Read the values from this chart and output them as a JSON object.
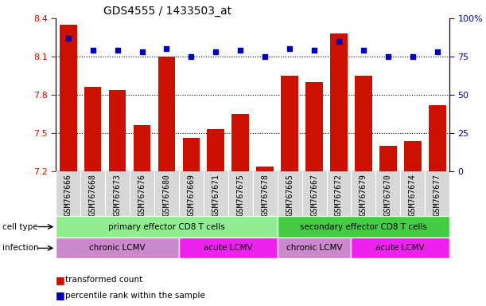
{
  "title": "GDS4555 / 1433503_at",
  "samples": [
    "GSM767666",
    "GSM767668",
    "GSM767673",
    "GSM767676",
    "GSM767680",
    "GSM767669",
    "GSM767671",
    "GSM767675",
    "GSM767678",
    "GSM767665",
    "GSM767667",
    "GSM767672",
    "GSM767679",
    "GSM767670",
    "GSM767674",
    "GSM767677"
  ],
  "bar_values": [
    8.35,
    7.86,
    7.84,
    7.56,
    8.1,
    7.46,
    7.53,
    7.65,
    7.24,
    7.95,
    7.9,
    8.28,
    7.95,
    7.4,
    7.44,
    7.72
  ],
  "percentile_values": [
    87,
    79,
    79,
    78,
    80,
    75,
    78,
    79,
    75,
    80,
    79,
    85,
    79,
    75,
    75,
    78
  ],
  "ymin": 7.2,
  "ymax": 8.4,
  "yticks_left": [
    7.2,
    7.5,
    7.8,
    8.1,
    8.4
  ],
  "yticks_right": [
    0,
    25,
    50,
    75,
    100
  ],
  "bar_color": "#cc1100",
  "dot_color": "#0000bb",
  "cell_type_primary_color": "#90ee90",
  "cell_type_secondary_color": "#44cc44",
  "infection_chronic_color": "#cc88cc",
  "infection_acute_color": "#ee22ee",
  "cell_type_label": "cell type",
  "infection_label": "infection",
  "legend_bar_label": "transformed count",
  "legend_dot_label": "percentile rank within the sample",
  "tick_label_color_left": "#cc1100",
  "tick_label_color_right": "#0000bb",
  "cell_groups": [
    {
      "label": "primary effector CD8 T cells",
      "start": 0,
      "end": 8,
      "color": "#90ee90"
    },
    {
      "label": "secondary effector CD8 T cells",
      "start": 9,
      "end": 15,
      "color": "#44cc44"
    }
  ],
  "inf_groups": [
    {
      "label": "chronic LCMV",
      "start": 0,
      "end": 4,
      "color": "#cc88cc"
    },
    {
      "label": "acute LCMV",
      "start": 5,
      "end": 8,
      "color": "#ee22ee"
    },
    {
      "label": "chronic LCMV",
      "start": 9,
      "end": 11,
      "color": "#cc88cc"
    },
    {
      "label": "acute LCMV",
      "start": 12,
      "end": 15,
      "color": "#ee22ee"
    }
  ]
}
